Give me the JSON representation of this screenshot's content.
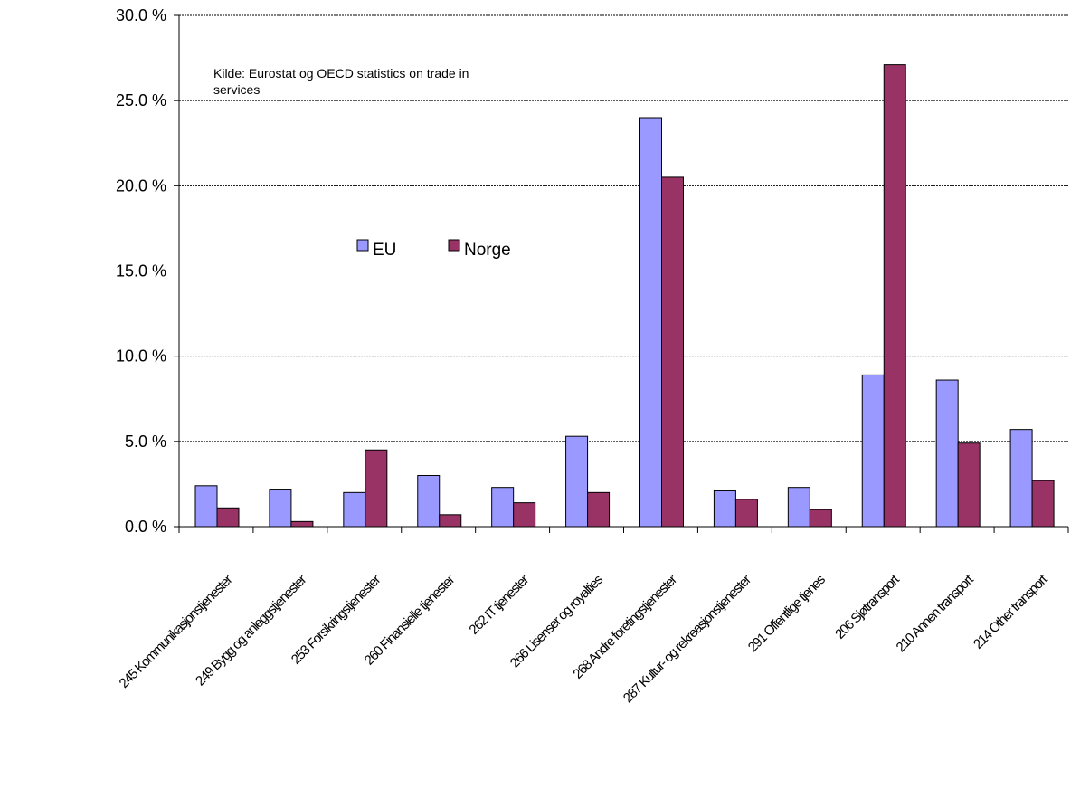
{
  "chart_data": {
    "type": "bar",
    "categories": [
      "245 Kommunikasjonstjenester",
      "249 Bygg og anleggstjenester",
      "253 Forsikringstjenester",
      "260 Finansielle tjenester",
      "262 IT tjenester",
      "266 Lisenser og royalties",
      "268 Andre foretingstjenester",
      "287 Kultur- og rekreasjonstjenester",
      "291 Offentlige tjenes",
      "206 Sjøtransport",
      "210 Annen transport",
      "214 Other transport"
    ],
    "series": [
      {
        "name": "EU",
        "color": "#9999ff",
        "values": [
          2.4,
          2.2,
          2.0,
          3.0,
          2.3,
          5.3,
          24.0,
          2.1,
          2.3,
          8.9,
          8.6,
          5.7
        ]
      },
      {
        "name": "Norge",
        "color": "#993366",
        "values": [
          1.1,
          0.3,
          4.5,
          0.7,
          1.4,
          2.0,
          20.5,
          1.6,
          1.0,
          27.1,
          4.9,
          2.7
        ]
      }
    ],
    "yticks": [
      "0.0 %",
      "5.0 %",
      "10.0 %",
      "15.0 %",
      "20.0 %",
      "25.0 %",
      "30.0 %"
    ],
    "ylim": [
      0,
      30
    ],
    "grid": true,
    "legend_position": "upper-middle",
    "annotation": "Kilde: Eurostat og OECD statistics on trade in services",
    "title": "",
    "xlabel": "",
    "ylabel": ""
  }
}
